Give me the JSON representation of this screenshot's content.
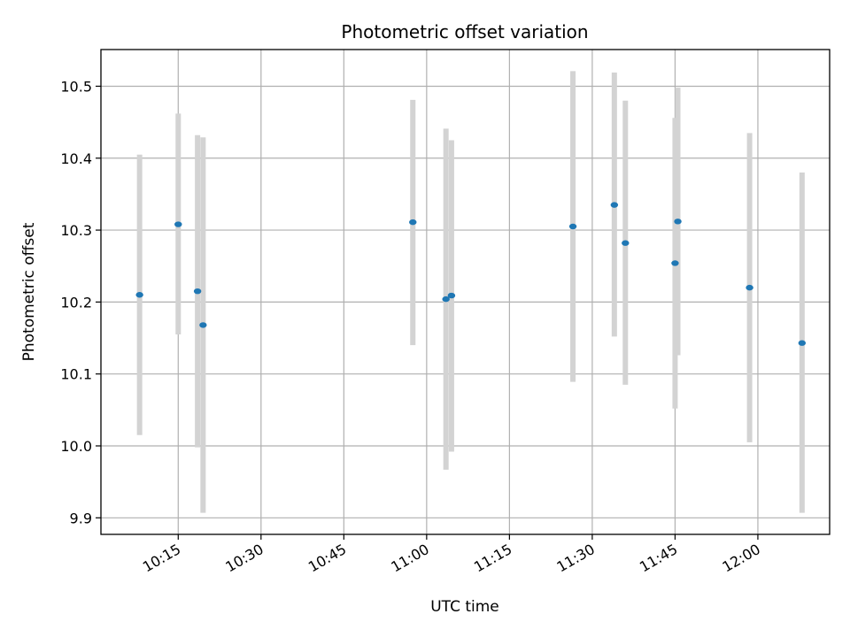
{
  "chart_data": {
    "type": "scatter",
    "title": "Photometric offset variation",
    "xlabel": "UTC time",
    "ylabel": "Photometric offset",
    "xlim": [
      "10:01",
      "12:13"
    ],
    "ylim": [
      9.877,
      10.551
    ],
    "grid": true,
    "x_ticks": [
      "10:15",
      "10:30",
      "10:45",
      "11:00",
      "11:15",
      "11:30",
      "11:45",
      "12:00"
    ],
    "y_ticks": [
      "9.9",
      "10.0",
      "10.1",
      "10.2",
      "10.3",
      "10.4",
      "10.5"
    ],
    "series": [
      {
        "points": [
          {
            "x": "10:08",
            "y": 10.21,
            "y_low": 10.015,
            "y_high": 10.405
          },
          {
            "x": "10:15",
            "y": 10.308,
            "y_low": 10.155,
            "y_high": 10.462
          },
          {
            "x": "10:18.5",
            "y": 10.215,
            "y_low": 9.998,
            "y_high": 10.432
          },
          {
            "x": "10:19.5",
            "y": 10.168,
            "y_low": 9.907,
            "y_high": 10.429
          },
          {
            "x": "10:57.5",
            "y": 10.311,
            "y_low": 10.14,
            "y_high": 10.481
          },
          {
            "x": "11:03.5",
            "y": 10.204,
            "y_low": 9.967,
            "y_high": 10.441
          },
          {
            "x": "11:04.5",
            "y": 10.209,
            "y_low": 9.992,
            "y_high": 10.425
          },
          {
            "x": "11:26.5",
            "y": 10.305,
            "y_low": 10.089,
            "y_high": 10.521
          },
          {
            "x": "11:34",
            "y": 10.335,
            "y_low": 10.152,
            "y_high": 10.519
          },
          {
            "x": "11:36",
            "y": 10.282,
            "y_low": 10.085,
            "y_high": 10.48
          },
          {
            "x": "11:45",
            "y": 10.254,
            "y_low": 10.052,
            "y_high": 10.456
          },
          {
            "x": "11:45.5",
            "y": 10.312,
            "y_low": 10.126,
            "y_high": 10.498
          },
          {
            "x": "11:58.5",
            "y": 10.22,
            "y_low": 10.005,
            "y_high": 10.435
          },
          {
            "x": "12:08",
            "y": 10.143,
            "y_low": 9.907,
            "y_high": 10.38
          }
        ]
      }
    ],
    "colors": {
      "points": "#1f77b4",
      "errorbars": "#d3d3d3",
      "grid": "#b0b0b0"
    }
  }
}
